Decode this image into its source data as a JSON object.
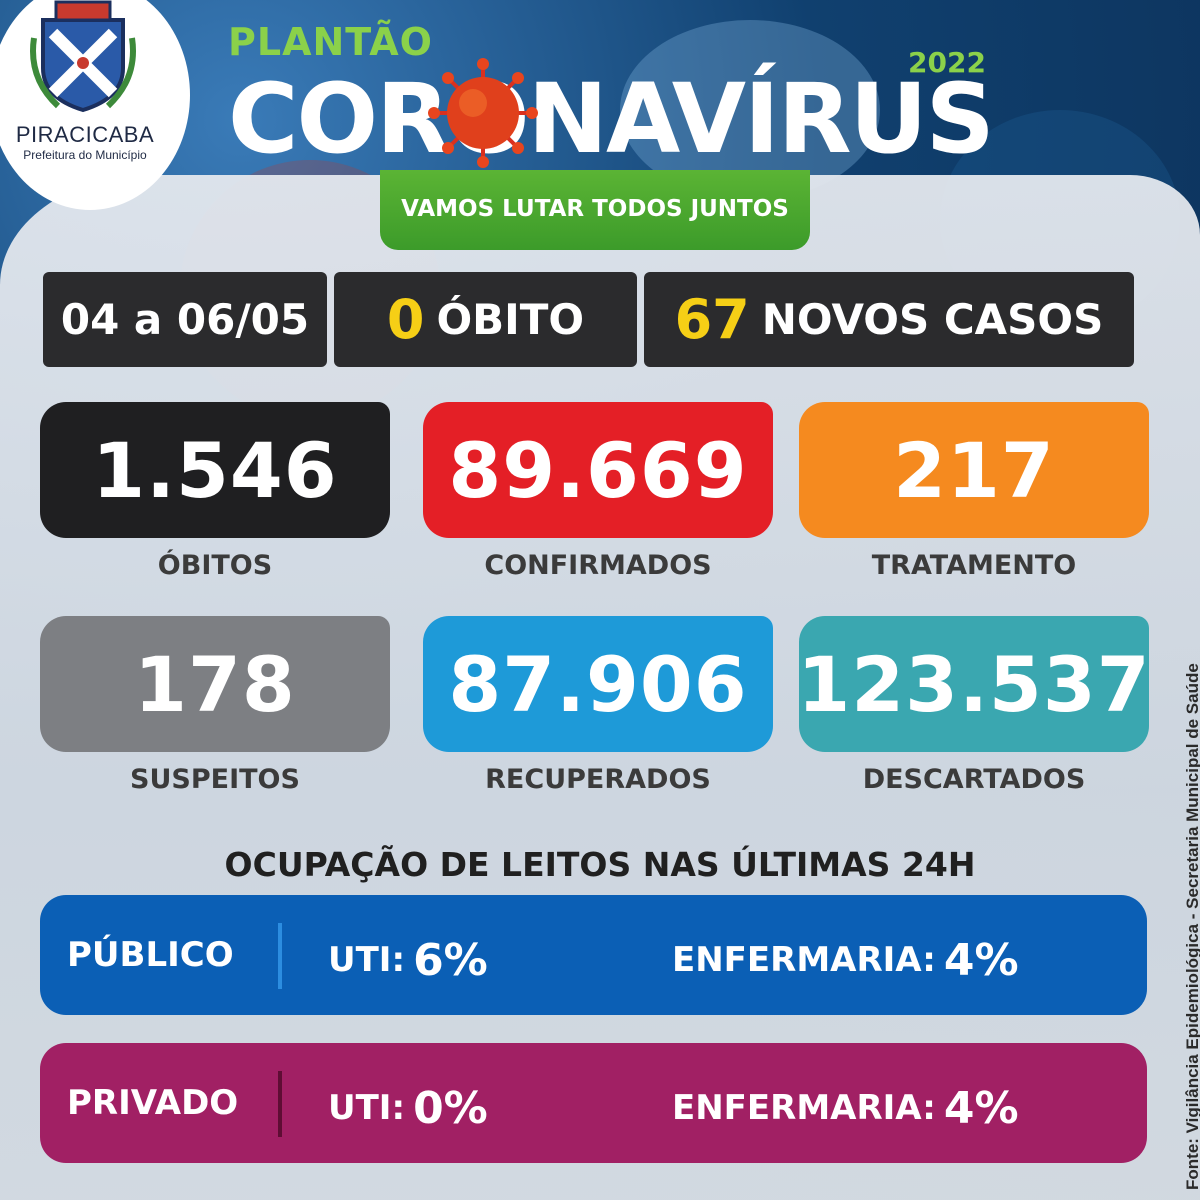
{
  "logo": {
    "city": "PIRACICABA",
    "subtitle": "Prefeitura do Município"
  },
  "header": {
    "plantao": "PLANTÃO",
    "title": "CORONAVÍRUS",
    "year": "2022",
    "slogan": "VAMOS LUTAR TODOS JUNTOS"
  },
  "summary": {
    "period": "04 a 06/05",
    "deaths_value": "0",
    "deaths_label": "ÓBITO",
    "new_cases_value": "67",
    "new_cases_label": "NOVOS CASOS"
  },
  "stats": [
    {
      "value": "1.546",
      "label": "ÓBITOS",
      "color": "#1f1f21"
    },
    {
      "value": "89.669",
      "label": "CONFIRMADOS",
      "color": "#e41f26"
    },
    {
      "value": "217",
      "label": "TRATAMENTO",
      "color": "#f58a1f"
    },
    {
      "value": "178",
      "label": "SUSPEITOS",
      "color": "#7d7f83"
    },
    {
      "value": "87.906",
      "label": "RECUPERADOS",
      "color": "#1e9ad8"
    },
    {
      "value": "123.537",
      "label": "DESCARTADOS",
      "color": "#3aa7b0"
    }
  ],
  "beds": {
    "heading": "OCUPAÇÃO DE LEITOS NAS ÚLTIMAS 24H",
    "rows": [
      {
        "name": "PÚBLICO",
        "uti_label": "UTI:",
        "uti_value": "6%",
        "enf_label": "ENFERMARIA:",
        "enf_value": "4%",
        "color": "#0b5fb5"
      },
      {
        "name": "PRIVADO",
        "uti_label": "UTI:",
        "uti_value": "0%",
        "enf_label": "ENFERMARIA:",
        "enf_value": "4%",
        "color": "#a12064"
      }
    ]
  },
  "source": "Fonte: Vigilância Epidemiológica - Secretaria Municipal de Saúde"
}
